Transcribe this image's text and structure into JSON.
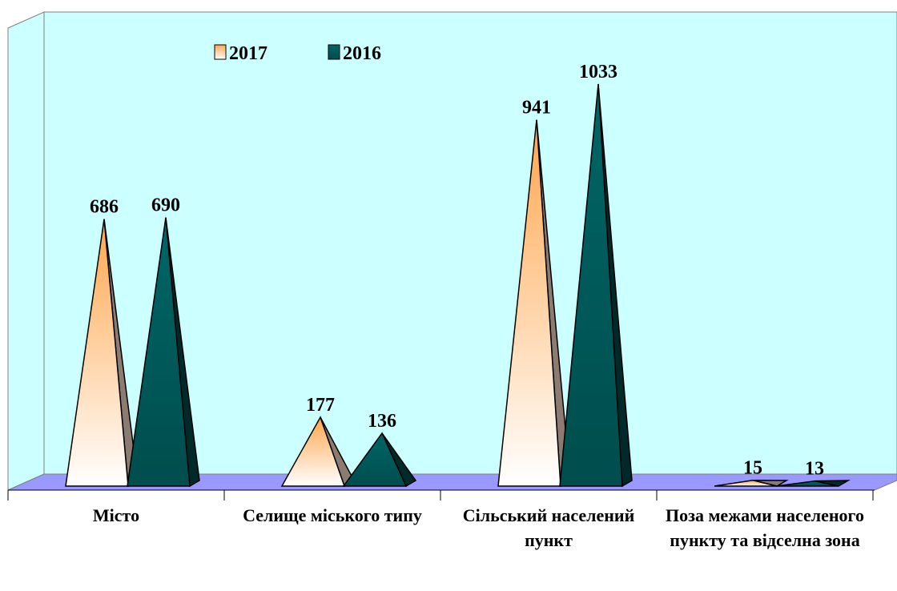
{
  "chart_data": {
    "type": "pyramid",
    "categories": [
      "Місто",
      "Селище міського типу",
      "Сільський населений пункт",
      "Поза межами населеного пункту та відселна зона"
    ],
    "series": [
      {
        "name": "2017",
        "color": "#ffa64d",
        "values": [
          686,
          177,
          941,
          15
        ]
      },
      {
        "name": "2016",
        "color": "#006666",
        "values": [
          690,
          136,
          1033,
          13
        ]
      }
    ],
    "legend": "top"
  }
}
